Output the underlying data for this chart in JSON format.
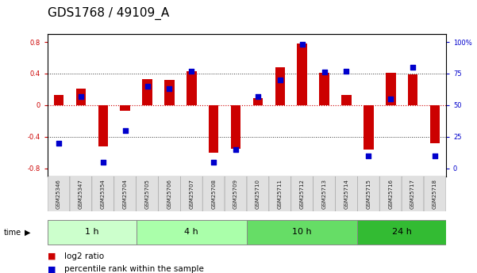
{
  "title": "GDS1768 / 49109_A",
  "samples": [
    "GSM25346",
    "GSM25347",
    "GSM25354",
    "GSM25704",
    "GSM25705",
    "GSM25706",
    "GSM25707",
    "GSM25708",
    "GSM25709",
    "GSM25710",
    "GSM25711",
    "GSM25712",
    "GSM25713",
    "GSM25714",
    "GSM25715",
    "GSM25716",
    "GSM25717",
    "GSM25718"
  ],
  "log2_ratio": [
    0.13,
    0.21,
    -0.52,
    -0.07,
    0.33,
    0.32,
    0.43,
    -0.6,
    -0.55,
    0.09,
    0.48,
    0.78,
    0.41,
    0.13,
    -0.56,
    0.41,
    0.39,
    -0.48
  ],
  "percentile": [
    20,
    57,
    5,
    30,
    65,
    63,
    77,
    5,
    15,
    57,
    70,
    98,
    76,
    77,
    10,
    55,
    80,
    10
  ],
  "groups": [
    {
      "label": "1 h",
      "start": 0,
      "end": 4,
      "color": "#ccffcc"
    },
    {
      "label": "4 h",
      "start": 4,
      "end": 9,
      "color": "#aaffaa"
    },
    {
      "label": "10 h",
      "start": 9,
      "end": 14,
      "color": "#77ee77"
    },
    {
      "label": "24 h",
      "start": 14,
      "end": 18,
      "color": "#44cc44"
    }
  ],
  "ylim_left": [
    -0.9,
    0.9
  ],
  "yticks_left": [
    -0.8,
    -0.4,
    0.0,
    0.4,
    0.8
  ],
  "ytick_labels_left": [
    "-0.8",
    "-0.4",
    "0",
    "0.4",
    "0.8"
  ],
  "pct_min": 0,
  "pct_max": 100,
  "ytick_labels_right": [
    "0",
    "25",
    "50",
    "75",
    "100%"
  ],
  "yticks_right_pct": [
    0,
    25,
    50,
    75,
    100
  ],
  "bar_color": "#cc0000",
  "dot_color": "#0000cc",
  "bg_color": "#ffffff",
  "title_fontsize": 11,
  "tick_fontsize": 6,
  "group_label_fontsize": 8,
  "legend_fontsize": 7.5,
  "sample_label_fontsize": 5
}
